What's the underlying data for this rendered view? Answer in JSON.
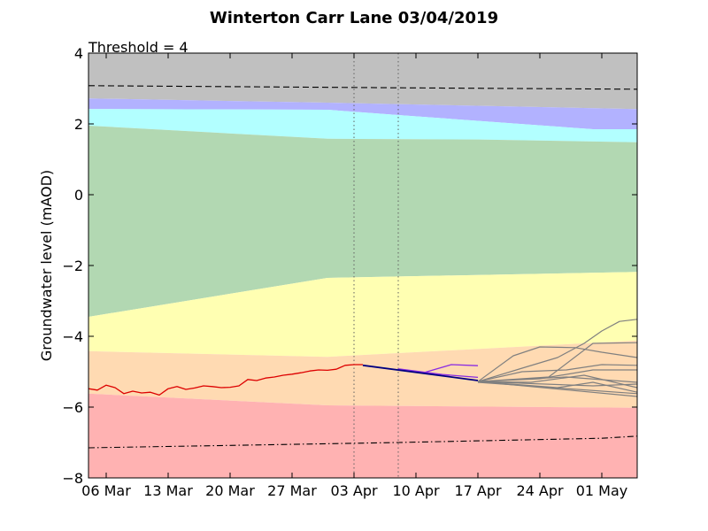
{
  "chart_data": {
    "type": "line",
    "title": "Winterton Carr Lane 03/04/2019",
    "annotation": "Threshold = 4",
    "xlabel": "",
    "ylabel": "Groundwater level (mAOD)",
    "xlim": [
      "2019-03-04",
      "2019-05-05"
    ],
    "ylim": [
      -8,
      4
    ],
    "x_ticks": [
      "06 Mar",
      "13 Mar",
      "20 Mar",
      "27 Mar",
      "03 Apr",
      "10 Apr",
      "17 Apr",
      "24 Apr",
      "01 May"
    ],
    "x_tick_dates": [
      "2019-03-06",
      "2019-03-13",
      "2019-03-20",
      "2019-03-27",
      "2019-04-03",
      "2019-04-10",
      "2019-04-17",
      "2019-04-24",
      "2019-05-01"
    ],
    "y_ticks": [
      4,
      2,
      0,
      -2,
      -4,
      -6,
      -8
    ],
    "vertical_markers": [
      "2019-04-03",
      "2019-04-08"
    ],
    "colors": {
      "band_grey": "#c0c0c0",
      "band_blue": "#b2b2ff",
      "band_cyan": "#b2ffff",
      "band_green": "#b2d8b2",
      "band_yellow": "#ffffb2",
      "band_orange": "#ffdab2",
      "band_red": "#ffb2b2",
      "observed": "#dd0000",
      "forecast_main": "#000080",
      "forecast_purple": "#8a2be2",
      "ensemble": "#808080"
    },
    "bands": [
      {
        "name": "grey",
        "color": "#c0c0c0",
        "lower": [
          [
            "2019-03-04",
            2.72
          ],
          [
            "2019-03-31",
            2.6
          ],
          [
            "2019-05-05",
            2.42
          ]
        ],
        "upper": [
          [
            "2019-03-04",
            4
          ],
          [
            "2019-05-05",
            4
          ]
        ]
      },
      {
        "name": "blue",
        "color": "#b2b2ff",
        "lower": [
          [
            "2019-03-04",
            2.42
          ],
          [
            "2019-03-31",
            2.4
          ],
          [
            "2019-04-08",
            2.25
          ],
          [
            "2019-04-30",
            1.85
          ],
          [
            "2019-05-05",
            1.85
          ]
        ],
        "upper": [
          [
            "2019-03-04",
            2.72
          ],
          [
            "2019-03-31",
            2.6
          ],
          [
            "2019-05-05",
            2.42
          ]
        ]
      },
      {
        "name": "cyan",
        "color": "#b2ffff",
        "lower": [
          [
            "2019-03-04",
            1.95
          ],
          [
            "2019-03-31",
            1.58
          ],
          [
            "2019-04-17",
            1.56
          ],
          [
            "2019-05-05",
            1.48
          ]
        ],
        "upper": [
          [
            "2019-03-04",
            2.42
          ],
          [
            "2019-03-31",
            2.4
          ],
          [
            "2019-04-08",
            2.25
          ],
          [
            "2019-04-30",
            1.85
          ],
          [
            "2019-05-05",
            1.85
          ]
        ]
      },
      {
        "name": "green",
        "color": "#b2d8b2",
        "lower": [
          [
            "2019-03-04",
            -3.45
          ],
          [
            "2019-03-31",
            -2.35
          ],
          [
            "2019-05-05",
            -2.18
          ]
        ],
        "upper": [
          [
            "2019-03-04",
            1.95
          ],
          [
            "2019-03-31",
            1.58
          ],
          [
            "2019-04-17",
            1.56
          ],
          [
            "2019-05-05",
            1.48
          ]
        ]
      },
      {
        "name": "yellow",
        "color": "#ffffb2",
        "lower": [
          [
            "2019-03-04",
            -4.42
          ],
          [
            "2019-03-31",
            -4.58
          ],
          [
            "2019-05-05",
            -4.12
          ]
        ],
        "upper": [
          [
            "2019-03-04",
            -3.45
          ],
          [
            "2019-03-31",
            -2.35
          ],
          [
            "2019-05-05",
            -2.18
          ]
        ]
      },
      {
        "name": "orange",
        "color": "#ffdab2",
        "lower": [
          [
            "2019-03-04",
            -5.62
          ],
          [
            "2019-03-31",
            -5.95
          ],
          [
            "2019-05-05",
            -6.02
          ]
        ],
        "upper": [
          [
            "2019-03-04",
            -4.42
          ],
          [
            "2019-03-31",
            -4.58
          ],
          [
            "2019-05-05",
            -4.12
          ]
        ]
      },
      {
        "name": "red",
        "color": "#ffb2b2",
        "lower": [
          [
            "2019-03-04",
            -8
          ],
          [
            "2019-05-05",
            -8
          ]
        ],
        "upper": [
          [
            "2019-03-04",
            -5.62
          ],
          [
            "2019-03-31",
            -5.95
          ],
          [
            "2019-05-05",
            -6.02
          ]
        ]
      }
    ],
    "reference_lines": [
      {
        "style": "dashed",
        "points": [
          [
            "2019-03-04",
            3.08
          ],
          [
            "2019-04-08",
            3.02
          ],
          [
            "2019-05-05",
            2.98
          ]
        ]
      },
      {
        "style": "dashdot",
        "points": [
          [
            "2019-03-04",
            -7.15
          ],
          [
            "2019-04-08",
            -7.0
          ],
          [
            "2019-05-01",
            -6.88
          ],
          [
            "2019-05-05",
            -6.82
          ]
        ]
      }
    ],
    "series": [
      {
        "style": "observed",
        "x": [
          "2019-03-04",
          "2019-03-05",
          "2019-03-06",
          "2019-03-07",
          "2019-03-08",
          "2019-03-09",
          "2019-03-10",
          "2019-03-11",
          "2019-03-12",
          "2019-03-13",
          "2019-03-14",
          "2019-03-15",
          "2019-03-16",
          "2019-03-17",
          "2019-03-18",
          "2019-03-19",
          "2019-03-20",
          "2019-03-21",
          "2019-03-22",
          "2019-03-23",
          "2019-03-24",
          "2019-03-25",
          "2019-03-26",
          "2019-03-27",
          "2019-03-28",
          "2019-03-29",
          "2019-03-30",
          "2019-03-31",
          "2019-04-01",
          "2019-04-02",
          "2019-04-03",
          "2019-04-04"
        ],
        "y": [
          -5.48,
          -5.52,
          -5.38,
          -5.45,
          -5.62,
          -5.55,
          -5.6,
          -5.58,
          -5.66,
          -5.48,
          -5.42,
          -5.5,
          -5.46,
          -5.4,
          -5.42,
          -5.45,
          -5.44,
          -5.4,
          -5.22,
          -5.25,
          -5.18,
          -5.15,
          -5.1,
          -5.07,
          -5.03,
          -4.98,
          -4.95,
          -4.96,
          -4.93,
          -4.82,
          -4.8,
          -4.8
        ]
      },
      {
        "style": "forecast_main",
        "x": [
          "2019-04-04",
          "2019-04-17"
        ],
        "y": [
          -4.82,
          -5.25
        ]
      },
      {
        "style": "forecast_purple",
        "x": [
          "2019-04-11",
          "2019-04-14",
          "2019-04-17"
        ],
        "y": [
          -5.02,
          -4.8,
          -4.83
        ]
      },
      {
        "style": "forecast_purple",
        "x": [
          "2019-04-08",
          "2019-04-13",
          "2019-04-17"
        ],
        "y": [
          -4.92,
          -5.08,
          -5.16
        ]
      },
      {
        "style": "ensemble",
        "x": [
          "2019-04-17",
          "2019-04-22",
          "2019-04-26",
          "2019-04-29",
          "2019-05-01",
          "2019-05-03",
          "2019-05-05"
        ],
        "y": [
          -5.28,
          -4.9,
          -4.6,
          -4.2,
          -3.85,
          -3.58,
          -3.52
        ]
      },
      {
        "style": "ensemble",
        "x": [
          "2019-04-17",
          "2019-04-21",
          "2019-04-24",
          "2019-04-28",
          "2019-05-01",
          "2019-05-05"
        ],
        "y": [
          -5.28,
          -4.55,
          -4.3,
          -4.32,
          -4.45,
          -4.6
        ]
      },
      {
        "style": "ensemble",
        "x": [
          "2019-04-17",
          "2019-04-25",
          "2019-04-30",
          "2019-05-05"
        ],
        "y": [
          -5.28,
          -5.15,
          -4.2,
          -4.18
        ]
      },
      {
        "style": "ensemble",
        "x": [
          "2019-04-17",
          "2019-04-22",
          "2019-04-27",
          "2019-05-01",
          "2019-05-05"
        ],
        "y": [
          -5.28,
          -5.0,
          -4.95,
          -4.8,
          -4.82
        ]
      },
      {
        "style": "ensemble",
        "x": [
          "2019-04-17",
          "2019-04-27",
          "2019-05-05"
        ],
        "y": [
          -5.28,
          -5.15,
          -5.3
        ]
      },
      {
        "style": "ensemble",
        "x": [
          "2019-04-17",
          "2019-04-23",
          "2019-04-29",
          "2019-05-05"
        ],
        "y": [
          -5.28,
          -5.3,
          -5.1,
          -5.45
        ]
      },
      {
        "style": "ensemble",
        "x": [
          "2019-04-17",
          "2019-04-26",
          "2019-04-30",
          "2019-05-05"
        ],
        "y": [
          -5.28,
          -5.45,
          -5.3,
          -5.58
        ]
      },
      {
        "style": "ensemble",
        "x": [
          "2019-04-17",
          "2019-05-05"
        ],
        "y": [
          -5.28,
          -5.7
        ]
      },
      {
        "style": "ensemble",
        "x": [
          "2019-04-17",
          "2019-05-05"
        ],
        "y": [
          -5.3,
          -5.62
        ]
      },
      {
        "style": "ensemble",
        "x": [
          "2019-04-17",
          "2019-04-30",
          "2019-05-05"
        ],
        "y": [
          -5.28,
          -5.4,
          -5.35
        ]
      },
      {
        "style": "ensemble",
        "x": [
          "2019-04-17",
          "2019-04-24",
          "2019-04-30",
          "2019-05-05"
        ],
        "y": [
          -5.28,
          -5.2,
          -4.95,
          -4.95
        ]
      }
    ]
  }
}
